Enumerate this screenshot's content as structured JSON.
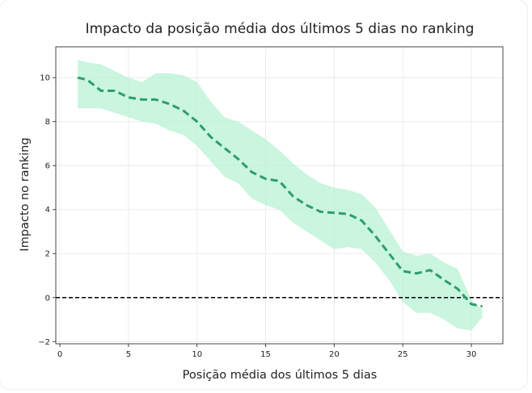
{
  "chart_data": {
    "type": "line",
    "title": "Impacto da posição média dos últimos 5 dias no ranking",
    "xlabel": "Posição média dos últimos 5 dias",
    "ylabel": "Impacto no ranking",
    "xlim": [
      -0.3,
      32.3
    ],
    "ylim": [
      -2.1,
      11.4
    ],
    "x_ticks": [
      0,
      5,
      10,
      15,
      20,
      25,
      30
    ],
    "y_ticks": [
      -2,
      0,
      2,
      4,
      6,
      8,
      10
    ],
    "x_tick_labels": [
      "0",
      "5",
      "10",
      "15",
      "20",
      "25",
      "30"
    ],
    "y_tick_labels": [
      "−2",
      "0",
      "2",
      "4",
      "6",
      "8",
      "10"
    ],
    "grid": true,
    "reference_line": {
      "y": 0,
      "style": "dashed",
      "color": "#000000"
    },
    "series": [
      {
        "color": "#2e9e6a",
        "band_color": "#b8f2d4",
        "x": [
          1.3,
          2.0,
          3.0,
          4.0,
          5.0,
          6.0,
          7.0,
          8.0,
          9.0,
          10.0,
          11.0,
          12.0,
          13.0,
          14.0,
          15.0,
          16.0,
          17.0,
          18.0,
          19.0,
          20.0,
          21.0,
          22.0,
          23.0,
          24.0,
          25.0,
          26.0,
          27.0,
          28.0,
          29.0,
          30.0,
          30.8
        ],
        "y": [
          10.0,
          9.9,
          9.4,
          9.4,
          9.1,
          9.0,
          9.0,
          8.8,
          8.5,
          8.0,
          7.3,
          6.8,
          6.3,
          5.7,
          5.4,
          5.3,
          4.6,
          4.2,
          3.9,
          3.85,
          3.8,
          3.5,
          2.8,
          2.0,
          1.2,
          1.1,
          1.25,
          0.8,
          0.4,
          -0.3,
          -0.4
        ],
        "upper": [
          10.8,
          10.7,
          10.6,
          10.3,
          10.0,
          9.8,
          10.2,
          10.2,
          10.1,
          9.8,
          8.9,
          8.2,
          8.0,
          7.6,
          7.2,
          6.7,
          6.1,
          5.6,
          5.2,
          5.0,
          4.9,
          4.7,
          4.1,
          3.1,
          2.1,
          1.9,
          2.0,
          1.6,
          1.3,
          -0.1,
          -0.55
        ],
        "lower": [
          8.6,
          8.6,
          8.6,
          8.4,
          8.2,
          8.0,
          7.9,
          7.6,
          7.4,
          6.9,
          6.2,
          5.5,
          5.2,
          4.5,
          4.2,
          4.0,
          3.4,
          3.0,
          2.6,
          2.2,
          2.3,
          2.2,
          1.6,
          0.8,
          -0.2,
          -0.7,
          -0.7,
          -1.0,
          -1.4,
          -1.5,
          -0.9
        ]
      }
    ]
  }
}
